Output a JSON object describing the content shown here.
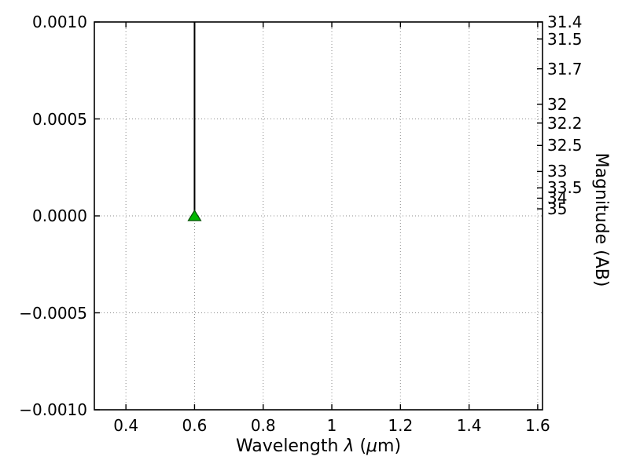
{
  "chart_data": {
    "type": "scatter",
    "title": "",
    "xlabel": "Wavelength λ (μm)",
    "xlabel_parts": {
      "prefix": "Wavelength ",
      "lambda": "λ",
      "open": " (",
      "mu": "μ",
      "suffix": "m)"
    },
    "xlim": [
      0.308,
      1.614
    ],
    "ylim": [
      -0.001,
      0.001
    ],
    "x_ticks": [
      0.4,
      0.6,
      0.8,
      1.0,
      1.2,
      1.4,
      1.6
    ],
    "x_tick_labels": [
      "0.4",
      "0.6",
      "0.8",
      "1",
      "1.2",
      "1.4",
      "1.6"
    ],
    "y_ticks_left": [
      0.001,
      0.0005,
      0.0,
      -0.0005,
      -0.001
    ],
    "y_tick_labels_left": [
      "0.0010",
      "0.0005",
      "0.0000",
      "−0.0005",
      "−0.0010"
    ],
    "right_axis": {
      "label": "Magnitude (AB)",
      "tick_values_mag": [
        31.4,
        31.5,
        31.7,
        32,
        32.2,
        32.5,
        33,
        33.5,
        34,
        35
      ],
      "tick_labels": [
        "31.4",
        "31.5",
        "31.7",
        "32",
        "32.2",
        "32.5",
        "33",
        "33.5",
        "34",
        "35"
      ],
      "flux_zero_point_mag": 23.9
    },
    "grid": {
      "visible": true,
      "style": "dotted"
    },
    "series": [
      {
        "name": "upper-limit-point",
        "marker": "triangle-up",
        "points": [
          {
            "x": 0.6,
            "y": 0.0
          }
        ],
        "limit_line": {
          "x": 0.6,
          "from_y": 0.001,
          "to_y": 0.0
        }
      }
    ],
    "colors": {
      "marker_fill": "#00b800",
      "marker_edge": "#004d00",
      "data_line": "#000000",
      "grid": "#8c8c8c",
      "axis": "#000000",
      "text": "#000000"
    }
  }
}
